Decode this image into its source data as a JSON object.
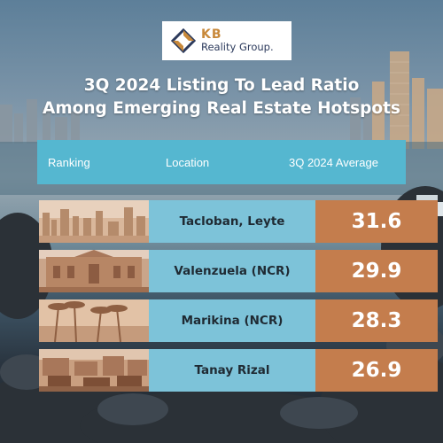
{
  "brand": {
    "name": "KB",
    "tagline": "Reality Group.",
    "colors": {
      "gold": "#c8893b",
      "navy": "#2c3a5c"
    },
    "icon": "diamond-logo-icon"
  },
  "title": {
    "line1": "3Q 2024 Listing To Lead Ratio",
    "line2": "Among  Emerging Real Estate Hotspots"
  },
  "table": {
    "headers": {
      "ranking": "Ranking",
      "location": "Location",
      "average": "3Q 2024 Average"
    },
    "rows": [
      {
        "location": "Tacloban, Leyte",
        "value": "31.6",
        "photo": "city-skyline-photo"
      },
      {
        "location": "Valenzuela (NCR)",
        "value": "29.9",
        "photo": "historic-building-photo"
      },
      {
        "location": "Marikina (NCR)",
        "value": "28.3",
        "photo": "palm-trees-photo"
      },
      {
        "location": "Tanay Rizal",
        "value": "26.9",
        "photo": "street-market-photo"
      }
    ],
    "colors": {
      "header": "#55b7d0",
      "location_cell": "#7dc3d9",
      "value_cell": "#c47d4d"
    }
  }
}
